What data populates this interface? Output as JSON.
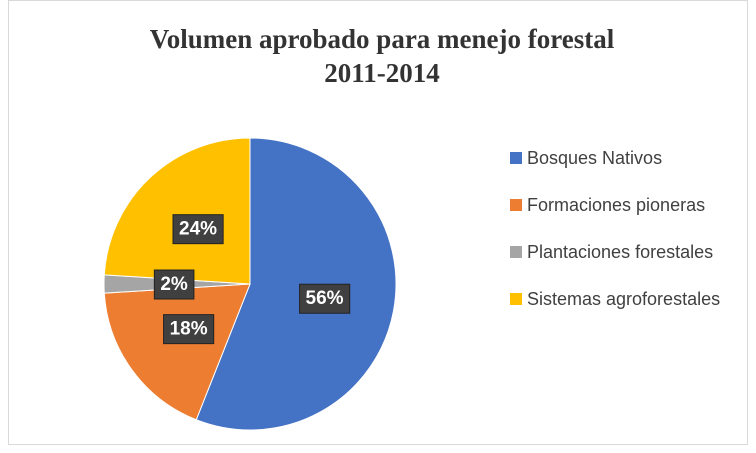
{
  "chart_data": {
    "type": "pie",
    "title": [
      "Volumen aprobado para menejo forestal",
      "2011-2014"
    ],
    "categories": [
      "Bosques Nativos",
      "Formaciones pioneras",
      "Plantaciones forestales",
      "Sistemas agroforestales"
    ],
    "values": [
      56,
      18,
      2,
      24
    ],
    "value_labels": [
      "56%",
      "18%",
      "2%",
      "24%"
    ],
    "colors": [
      "#4472c4",
      "#ed7d31",
      "#a5a5a5",
      "#ffc000"
    ],
    "legend": "right"
  }
}
